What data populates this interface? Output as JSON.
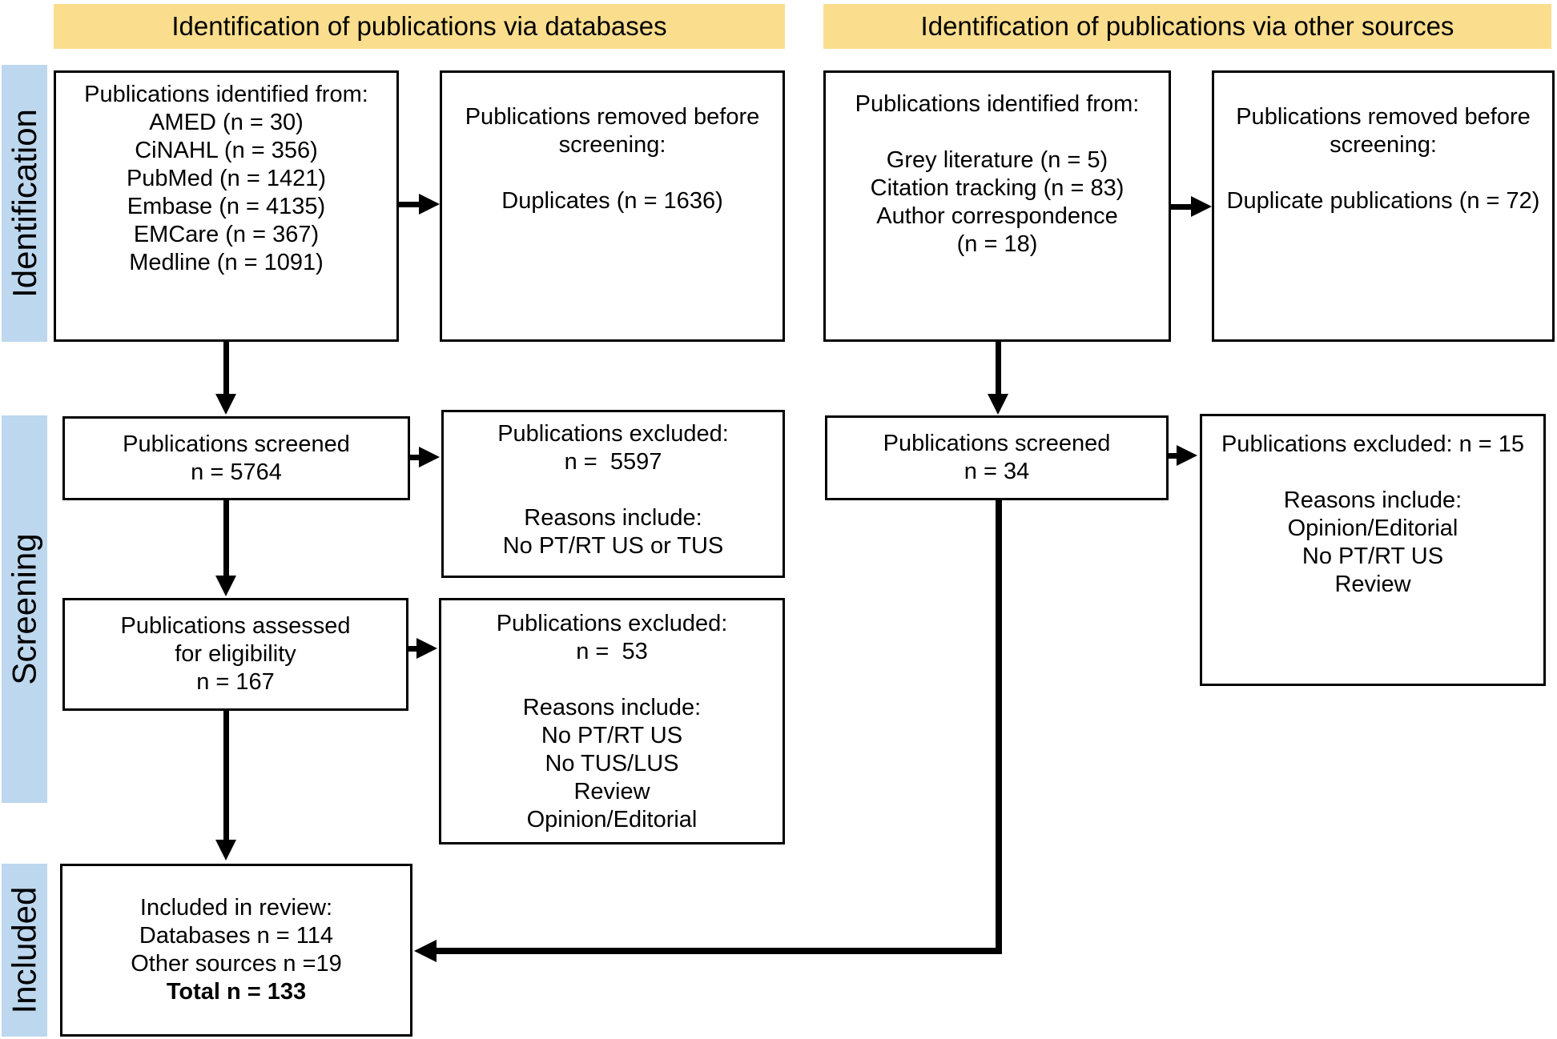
{
  "colors": {
    "header_bg": "#FADE8D",
    "sidebar_bg": "#BDD7EE",
    "line_color": "#000000",
    "box_bg": "#FFFFFF"
  },
  "headers": {
    "left": "Identification of publications via databases",
    "right": "Identification of publications via other sources"
  },
  "sidebar": {
    "identification": "Identification",
    "screening": "Screening",
    "included": "Included"
  },
  "boxes": {
    "db_identified": {
      "lines": [
        "Publications identified from:",
        "AMED (n = 30)",
        "CiNAHL (n = 356)",
        "PubMed (n = 1421)",
        "Embase (n = 4135)",
        "EMCare (n = 367)",
        "Medline (n = 1091)"
      ]
    },
    "db_removed": {
      "lines": [
        "Publications removed before",
        "screening:",
        "",
        "Duplicates (n = 1636)"
      ]
    },
    "db_screened": {
      "lines": [
        "Publications screened",
        "n = 5764"
      ]
    },
    "db_excluded_screening": {
      "lines": [
        "Publications excluded:",
        "n =  5597",
        "",
        "Reasons include:",
        "No PT/RT US or TUS"
      ]
    },
    "db_assessed": {
      "lines": [
        "Publications assessed",
        "for eligibility",
        "n = 167"
      ]
    },
    "db_excluded_eligibility": {
      "lines": [
        "Publications excluded:",
        "n =  53",
        "",
        "Reasons include:",
        "No PT/RT US",
        "No TUS/LUS",
        "Review",
        "Opinion/Editorial"
      ]
    },
    "included_review": {
      "lines": [
        "Included in review:",
        "Databases n = 114",
        "Other sources n =19"
      ],
      "total_line": "Total n = 133"
    },
    "other_identified": {
      "lines": [
        "Publications identified from:",
        "",
        "Grey literature (n = 5)",
        "Citation tracking (n = 83)",
        "Author correspondence",
        "(n = 18)"
      ]
    },
    "other_removed": {
      "lines": [
        "Publications removed before",
        "screening:",
        "",
        "Duplicate publications (n = 72)"
      ]
    },
    "other_screened": {
      "lines": [
        "Publications screened",
        "n = 34"
      ]
    },
    "other_excluded": {
      "lines": [
        "Publications excluded: n = 15",
        "",
        "Reasons include:",
        "Opinion/Editorial",
        "No PT/RT US",
        "Review"
      ]
    }
  }
}
